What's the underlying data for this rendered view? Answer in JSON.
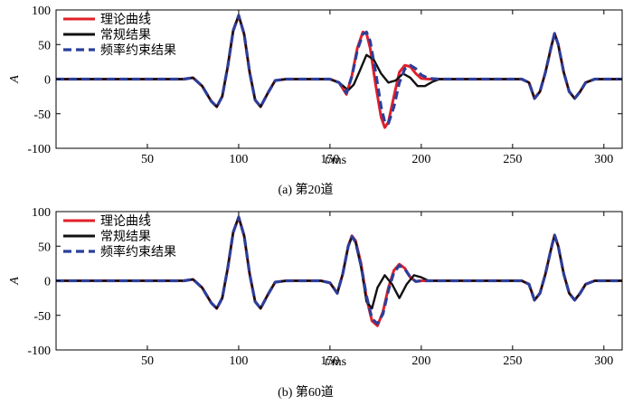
{
  "chart_data": [
    {
      "type": "line",
      "caption": "(a) 第20道",
      "xlabel_italic": "t",
      "xlabel_unit": "/ms",
      "ylabel": "A",
      "xlim": [
        0,
        310
      ],
      "ylim": [
        -100,
        100
      ],
      "xticks": [
        50,
        100,
        150,
        200,
        250,
        300
      ],
      "yticks": [
        100,
        50,
        0,
        -50,
        -100
      ],
      "grid": false,
      "legend_position": "top-left",
      "series": [
        {
          "name": "理论曲线",
          "color": "#e0202a",
          "dash": "solid",
          "x": [
            0,
            70,
            75,
            80,
            85,
            88,
            91,
            94,
            97,
            100,
            103,
            106,
            109,
            112,
            116,
            120,
            126,
            150,
            155,
            159,
            162,
            165,
            168,
            170,
            172,
            175,
            178,
            180,
            182,
            185,
            188,
            191,
            194,
            197,
            200,
            204,
            210,
            255,
            259,
            262,
            265,
            268,
            271,
            273,
            275,
            278,
            281,
            284,
            287,
            290,
            295,
            310
          ],
          "y": [
            0,
            0,
            2,
            -10,
            -32,
            -40,
            -25,
            18,
            70,
            92,
            65,
            10,
            -30,
            -40,
            -20,
            -2,
            0,
            0,
            -5,
            -22,
            5,
            45,
            68,
            66,
            45,
            -8,
            -55,
            -70,
            -62,
            -25,
            10,
            20,
            18,
            8,
            1,
            0,
            0,
            0,
            -5,
            -28,
            -18,
            10,
            45,
            66,
            50,
            10,
            -18,
            -28,
            -18,
            -5,
            0,
            0
          ]
        },
        {
          "name": "常规结果",
          "color": "#111111",
          "dash": "solid",
          "x": [
            0,
            70,
            75,
            80,
            85,
            88,
            91,
            94,
            97,
            100,
            103,
            106,
            109,
            112,
            116,
            120,
            126,
            150,
            155,
            160,
            163,
            166,
            170,
            174,
            178,
            182,
            186,
            190,
            194,
            198,
            202,
            206,
            210,
            255,
            259,
            262,
            265,
            268,
            271,
            273,
            275,
            278,
            281,
            284,
            287,
            290,
            295,
            310
          ],
          "y": [
            0,
            0,
            2,
            -10,
            -32,
            -40,
            -25,
            18,
            70,
            92,
            65,
            10,
            -30,
            -40,
            -20,
            -2,
            0,
            0,
            -5,
            -16,
            -8,
            10,
            35,
            28,
            8,
            -5,
            -2,
            8,
            2,
            -10,
            -10,
            -4,
            0,
            0,
            -5,
            -28,
            -18,
            10,
            45,
            66,
            50,
            10,
            -18,
            -28,
            -18,
            -5,
            0,
            0
          ]
        },
        {
          "name": "频率约束结果",
          "color": "#2b3f9a",
          "dash": "dashed",
          "x": [
            0,
            70,
            75,
            80,
            85,
            88,
            91,
            94,
            97,
            100,
            103,
            106,
            109,
            112,
            116,
            120,
            126,
            150,
            155,
            159,
            162,
            165,
            168,
            170,
            172,
            175,
            178,
            180,
            182,
            185,
            188,
            191,
            194,
            197,
            200,
            204,
            210,
            255,
            259,
            262,
            265,
            268,
            271,
            273,
            275,
            278,
            281,
            284,
            287,
            290,
            295,
            310
          ],
          "y": [
            0,
            0,
            2,
            -10,
            -32,
            -40,
            -25,
            18,
            70,
            92,
            65,
            10,
            -30,
            -40,
            -20,
            -2,
            0,
            0,
            -5,
            -20,
            4,
            42,
            65,
            68,
            55,
            10,
            -40,
            -62,
            -64,
            -40,
            -5,
            15,
            20,
            15,
            6,
            1,
            0,
            0,
            -5,
            -28,
            -18,
            10,
            45,
            66,
            50,
            10,
            -18,
            -28,
            -18,
            -5,
            0,
            0
          ]
        }
      ]
    },
    {
      "type": "line",
      "caption": "(b) 第60道",
      "xlabel_italic": "t",
      "xlabel_unit": "/ms",
      "ylabel": "A",
      "xlim": [
        0,
        310
      ],
      "ylim": [
        -100,
        100
      ],
      "xticks": [
        50,
        100,
        150,
        200,
        250,
        300
      ],
      "yticks": [
        100,
        50,
        0,
        -50,
        -100
      ],
      "grid": false,
      "legend_position": "top-left",
      "series": [
        {
          "name": "理论曲线",
          "color": "#e0202a",
          "dash": "solid",
          "x": [
            0,
            70,
            75,
            80,
            85,
            88,
            91,
            94,
            97,
            100,
            103,
            106,
            109,
            112,
            116,
            120,
            126,
            145,
            150,
            154,
            157,
            160,
            162,
            164,
            167,
            170,
            173,
            176,
            179,
            182,
            185,
            188,
            191,
            194,
            197,
            200,
            205,
            255,
            259,
            262,
            265,
            268,
            271,
            273,
            275,
            278,
            281,
            284,
            287,
            290,
            295,
            310
          ],
          "y": [
            0,
            0,
            2,
            -10,
            -32,
            -40,
            -25,
            18,
            70,
            92,
            65,
            10,
            -30,
            -40,
            -20,
            -2,
            0,
            0,
            -3,
            -18,
            10,
            50,
            65,
            58,
            25,
            -25,
            -58,
            -65,
            -45,
            -10,
            15,
            24,
            18,
            5,
            -1,
            0,
            0,
            0,
            -5,
            -28,
            -18,
            10,
            45,
            66,
            50,
            10,
            -18,
            -28,
            -18,
            -5,
            0,
            0
          ]
        },
        {
          "name": "常规结果",
          "color": "#111111",
          "dash": "solid",
          "x": [
            0,
            70,
            75,
            80,
            85,
            88,
            91,
            94,
            97,
            100,
            103,
            106,
            109,
            112,
            116,
            120,
            126,
            145,
            150,
            154,
            157,
            160,
            162,
            164,
            167,
            170,
            173,
            176,
            180,
            184,
            188,
            192,
            196,
            200,
            204,
            210,
            255,
            259,
            262,
            265,
            268,
            271,
            273,
            275,
            278,
            281,
            284,
            287,
            290,
            295,
            310
          ],
          "y": [
            0,
            0,
            2,
            -10,
            -32,
            -40,
            -25,
            18,
            70,
            92,
            65,
            10,
            -30,
            -40,
            -20,
            -2,
            0,
            0,
            -3,
            -18,
            10,
            50,
            63,
            56,
            20,
            -30,
            -40,
            -10,
            8,
            -5,
            -25,
            -5,
            8,
            5,
            0,
            0,
            0,
            -5,
            -28,
            -18,
            10,
            45,
            66,
            50,
            10,
            -18,
            -28,
            -18,
            -5,
            0,
            0
          ]
        },
        {
          "name": "频率约束结果",
          "color": "#2b3f9a",
          "dash": "dashed",
          "x": [
            0,
            70,
            75,
            80,
            85,
            88,
            91,
            94,
            97,
            100,
            103,
            106,
            109,
            112,
            116,
            120,
            126,
            145,
            150,
            154,
            157,
            160,
            162,
            164,
            167,
            170,
            173,
            176,
            179,
            182,
            185,
            188,
            191,
            194,
            197,
            200,
            205,
            255,
            259,
            262,
            265,
            268,
            271,
            273,
            275,
            278,
            281,
            284,
            287,
            290,
            295,
            310
          ],
          "y": [
            0,
            0,
            2,
            -10,
            -32,
            -40,
            -25,
            18,
            70,
            92,
            65,
            10,
            -30,
            -40,
            -20,
            -2,
            0,
            0,
            -3,
            -18,
            10,
            50,
            64,
            56,
            22,
            -22,
            -55,
            -62,
            -48,
            -14,
            12,
            22,
            17,
            5,
            -1,
            0,
            0,
            0,
            -5,
            -28,
            -18,
            10,
            45,
            66,
            50,
            10,
            -18,
            -28,
            -18,
            -5,
            0,
            0
          ]
        }
      ]
    }
  ]
}
